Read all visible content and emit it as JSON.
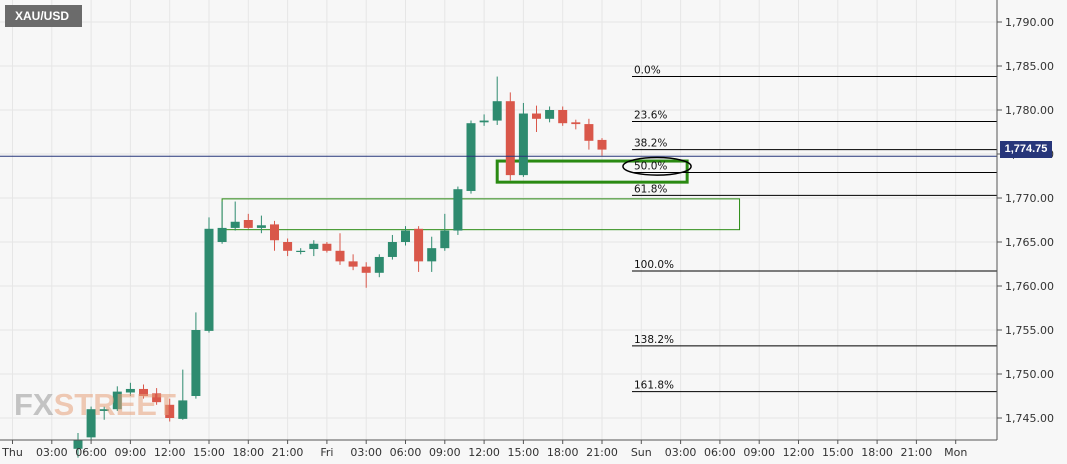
{
  "symbol": "XAU/USD",
  "watermark": {
    "part1": "FX",
    "part2": "STREET"
  },
  "current_price": {
    "label": "1,774.75",
    "value": 1774.75,
    "color": "#27367a"
  },
  "colors": {
    "up": "#2e8b6f",
    "down": "#d9574a",
    "fib_line": "#000000",
    "box": "#2a8a12",
    "grid": "#e6e6e6"
  },
  "chart_data": {
    "type": "candlestick",
    "title": "",
    "xlabel": "",
    "ylabel": "",
    "ylim": [
      1742.5,
      1792.5
    ],
    "grid": true,
    "y_ticks": [
      {
        "value": 1790,
        "label": "1,790.00"
      },
      {
        "value": 1785,
        "label": "1,785.00"
      },
      {
        "value": 1780,
        "label": "1,780.00"
      },
      {
        "value": 1775,
        "label": "1,775.00"
      },
      {
        "value": 1770,
        "label": "1,770.00"
      },
      {
        "value": 1765,
        "label": "1,765.00"
      },
      {
        "value": 1760,
        "label": "1,760.00"
      },
      {
        "value": 1755,
        "label": "1,755.00"
      },
      {
        "value": 1750,
        "label": "1,750.00"
      },
      {
        "value": 1745,
        "label": "1,745.00"
      }
    ],
    "x_ticks": [
      {
        "hour": 0,
        "label": "Thu"
      },
      {
        "hour": 3,
        "label": "03:00"
      },
      {
        "hour": 6,
        "label": "06:00"
      },
      {
        "hour": 9,
        "label": "09:00"
      },
      {
        "hour": 12,
        "label": "12:00"
      },
      {
        "hour": 15,
        "label": "15:00"
      },
      {
        "hour": 18,
        "label": "18:00"
      },
      {
        "hour": 21,
        "label": "21:00"
      },
      {
        "hour": 24,
        "label": "Fri"
      },
      {
        "hour": 27,
        "label": "03:00"
      },
      {
        "hour": 30,
        "label": "06:00"
      },
      {
        "hour": 33,
        "label": "09:00"
      },
      {
        "hour": 36,
        "label": "12:00"
      },
      {
        "hour": 39,
        "label": "15:00"
      },
      {
        "hour": 42,
        "label": "18:00"
      },
      {
        "hour": 45,
        "label": "21:00"
      },
      {
        "hour": 48,
        "label": "Sun"
      },
      {
        "hour": 51,
        "label": "03:00"
      },
      {
        "hour": 54,
        "label": "06:00"
      },
      {
        "hour": 57,
        "label": "09:00"
      },
      {
        "hour": 60,
        "label": "12:00"
      },
      {
        "hour": 63,
        "label": "15:00"
      },
      {
        "hour": 66,
        "label": "18:00"
      },
      {
        "hour": 69,
        "label": "21:00"
      },
      {
        "hour": 72,
        "label": "Mon"
      }
    ],
    "candles": [
      {
        "t": 5,
        "o": 1741.5,
        "h": 1743.3,
        "l": 1740.5,
        "c": 1742.5
      },
      {
        "t": 6,
        "o": 1742.8,
        "h": 1746.3,
        "l": 1742.5,
        "c": 1746.0
      },
      {
        "t": 7,
        "o": 1745.8,
        "h": 1746.3,
        "l": 1744.8,
        "c": 1746.0
      },
      {
        "t": 8,
        "o": 1746.0,
        "h": 1748.6,
        "l": 1745.8,
        "c": 1748.0
      },
      {
        "t": 9,
        "o": 1747.9,
        "h": 1749.0,
        "l": 1747.5,
        "c": 1748.3
      },
      {
        "t": 10,
        "o": 1748.3,
        "h": 1748.8,
        "l": 1747.2,
        "c": 1747.5
      },
      {
        "t": 11,
        "o": 1747.8,
        "h": 1748.4,
        "l": 1746.5,
        "c": 1746.8
      },
      {
        "t": 12,
        "o": 1746.5,
        "h": 1747.2,
        "l": 1744.6,
        "c": 1745.0
      },
      {
        "t": 13,
        "o": 1744.9,
        "h": 1750.5,
        "l": 1744.8,
        "c": 1747.0
      },
      {
        "t": 14,
        "o": 1747.5,
        "h": 1757.0,
        "l": 1747.2,
        "c": 1755.0
      },
      {
        "t": 15,
        "o": 1754.9,
        "h": 1767.8,
        "l": 1754.7,
        "c": 1766.5
      },
      {
        "t": 16,
        "o": 1765.0,
        "h": 1769.6,
        "l": 1764.8,
        "c": 1766.6
      },
      {
        "t": 17,
        "o": 1766.6,
        "h": 1769.6,
        "l": 1766.3,
        "c": 1767.3
      },
      {
        "t": 18,
        "o": 1767.5,
        "h": 1768.2,
        "l": 1766.5,
        "c": 1766.6
      },
      {
        "t": 19,
        "o": 1766.6,
        "h": 1768.0,
        "l": 1766.0,
        "c": 1766.9
      },
      {
        "t": 20,
        "o": 1767.0,
        "h": 1767.4,
        "l": 1764.0,
        "c": 1765.2
      },
      {
        "t": 21,
        "o": 1765.0,
        "h": 1765.4,
        "l": 1763.4,
        "c": 1764.0
      },
      {
        "t": 22,
        "o": 1764.0,
        "h": 1764.3,
        "l": 1763.6,
        "c": 1764.0
      },
      {
        "t": 23,
        "o": 1764.2,
        "h": 1765.2,
        "l": 1763.4,
        "c": 1764.8
      },
      {
        "t": 24,
        "o": 1764.8,
        "h": 1765.0,
        "l": 1763.8,
        "c": 1764.0
      },
      {
        "t": 25,
        "o": 1764.0,
        "h": 1766.0,
        "l": 1762.4,
        "c": 1762.8
      },
      {
        "t": 26,
        "o": 1762.8,
        "h": 1763.6,
        "l": 1761.8,
        "c": 1762.2
      },
      {
        "t": 27,
        "o": 1762.2,
        "h": 1762.7,
        "l": 1759.8,
        "c": 1761.5
      },
      {
        "t": 28,
        "o": 1761.5,
        "h": 1763.6,
        "l": 1761.0,
        "c": 1763.3
      },
      {
        "t": 29,
        "o": 1763.3,
        "h": 1765.8,
        "l": 1763.0,
        "c": 1765.0
      },
      {
        "t": 30,
        "o": 1765.0,
        "h": 1766.8,
        "l": 1764.6,
        "c": 1766.3
      },
      {
        "t": 31,
        "o": 1766.5,
        "h": 1766.8,
        "l": 1761.6,
        "c": 1762.8
      },
      {
        "t": 32,
        "o": 1762.8,
        "h": 1765.6,
        "l": 1761.6,
        "c": 1764.3
      },
      {
        "t": 33,
        "o": 1764.3,
        "h": 1768.2,
        "l": 1764.0,
        "c": 1766.3
      },
      {
        "t": 34,
        "o": 1766.3,
        "h": 1771.3,
        "l": 1765.8,
        "c": 1771.0
      },
      {
        "t": 35,
        "o": 1770.8,
        "h": 1778.8,
        "l": 1770.5,
        "c": 1778.5
      },
      {
        "t": 36,
        "o": 1778.6,
        "h": 1779.5,
        "l": 1778.2,
        "c": 1778.8
      },
      {
        "t": 37,
        "o": 1778.8,
        "h": 1783.8,
        "l": 1778.3,
        "c": 1781.0
      },
      {
        "t": 38,
        "o": 1781.0,
        "h": 1782.0,
        "l": 1772.0,
        "c": 1772.6
      },
      {
        "t": 39,
        "o": 1772.6,
        "h": 1780.8,
        "l": 1772.4,
        "c": 1779.6
      },
      {
        "t": 40,
        "o": 1779.6,
        "h": 1780.5,
        "l": 1777.5,
        "c": 1779.0
      },
      {
        "t": 41,
        "o": 1779.0,
        "h": 1780.4,
        "l": 1778.6,
        "c": 1780.0
      },
      {
        "t": 42,
        "o": 1780.0,
        "h": 1780.4,
        "l": 1778.2,
        "c": 1778.5
      },
      {
        "t": 43,
        "o": 1778.6,
        "h": 1778.9,
        "l": 1777.8,
        "c": 1778.4
      },
      {
        "t": 44,
        "o": 1778.4,
        "h": 1779.0,
        "l": 1775.5,
        "c": 1776.5
      },
      {
        "t": 45,
        "o": 1776.6,
        "h": 1776.8,
        "l": 1774.8,
        "c": 1775.5
      }
    ],
    "fib_levels": [
      {
        "label": "0.0%",
        "price": 1783.8
      },
      {
        "label": "23.6%",
        "price": 1778.7
      },
      {
        "label": "38.2%",
        "price": 1775.5
      },
      {
        "label": "50.0%",
        "price": 1772.9
      },
      {
        "label": "61.8%",
        "price": 1770.3
      },
      {
        "label": "100.0%",
        "price": 1761.7
      },
      {
        "label": "138.2%",
        "price": 1753.2
      },
      {
        "label": "161.8%",
        "price": 1748.0
      }
    ],
    "zones": [
      {
        "t_start": 16,
        "t_end": 55.5,
        "p_low": 1766.4,
        "p_high": 1769.9,
        "stroke": 1
      },
      {
        "t_start": 37,
        "t_end": 51.5,
        "p_low": 1771.8,
        "p_high": 1774.2,
        "stroke": 3
      }
    ],
    "ellipse": {
      "t": 49.2,
      "p": 1773.6,
      "rt": 2.6,
      "rp": 1.0
    }
  }
}
